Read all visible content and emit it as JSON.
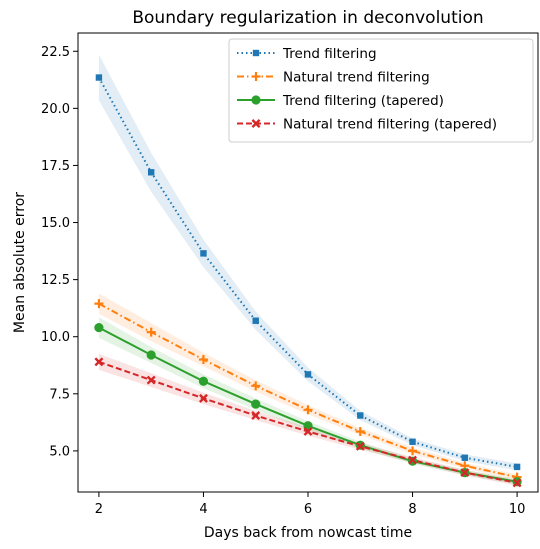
{
  "chart_data": {
    "type": "line",
    "title": "Boundary regularization in deconvolution",
    "xlabel": "Days back from nowcast time",
    "ylabel": "Mean absolute error",
    "x": [
      2,
      3,
      4,
      5,
      6,
      7,
      8,
      9,
      10
    ],
    "xlim": [
      1.6,
      10.4
    ],
    "ylim": [
      3.2,
      23.3
    ],
    "xticks": [
      2,
      4,
      6,
      8,
      10
    ],
    "xtick_labels": [
      "2",
      "4",
      "6",
      "8",
      "10"
    ],
    "yticks": [
      5.0,
      7.5,
      10.0,
      12.5,
      15.0,
      17.5,
      20.0,
      22.5
    ],
    "ytick_labels": [
      "5.0",
      "7.5",
      "10.0",
      "12.5",
      "15.0",
      "17.5",
      "20.0",
      "22.5"
    ],
    "grid": false,
    "legend_position": "top-right",
    "series": [
      {
        "name": "Trend filtering",
        "color": "#1f77b4",
        "linestyle": "dotted",
        "marker": "square",
        "values": [
          21.35,
          17.2,
          13.65,
          10.7,
          8.35,
          6.55,
          5.4,
          4.7,
          4.3
        ],
        "band": [
          1.0,
          0.85,
          0.6,
          0.4,
          0.3,
          0.2,
          0.15,
          0.15,
          0.15
        ]
      },
      {
        "name": "Natural trend filtering",
        "color": "#ff7f0e",
        "linestyle": "dashdot",
        "marker": "plus",
        "values": [
          11.45,
          10.2,
          9.0,
          7.85,
          6.8,
          5.85,
          5.0,
          4.35,
          3.85
        ],
        "band": [
          0.45,
          0.4,
          0.3,
          0.25,
          0.2,
          0.15,
          0.15,
          0.12,
          0.12
        ]
      },
      {
        "name": "Trend filtering (tapered)",
        "color": "#2ca02c",
        "linestyle": "solid",
        "marker": "circle",
        "values": [
          10.4,
          9.2,
          8.05,
          7.05,
          6.1,
          5.25,
          4.55,
          4.05,
          3.65
        ],
        "band": [
          0.45,
          0.35,
          0.3,
          0.25,
          0.2,
          0.15,
          0.12,
          0.12,
          0.12
        ]
      },
      {
        "name": "Natural trend filtering (tapered)",
        "color": "#d62728",
        "linestyle": "dashed",
        "marker": "x",
        "values": [
          8.9,
          8.1,
          7.3,
          6.55,
          5.85,
          5.2,
          4.6,
          4.05,
          3.6
        ],
        "band": [
          0.35,
          0.3,
          0.25,
          0.2,
          0.18,
          0.15,
          0.12,
          0.12,
          0.12
        ]
      }
    ]
  }
}
